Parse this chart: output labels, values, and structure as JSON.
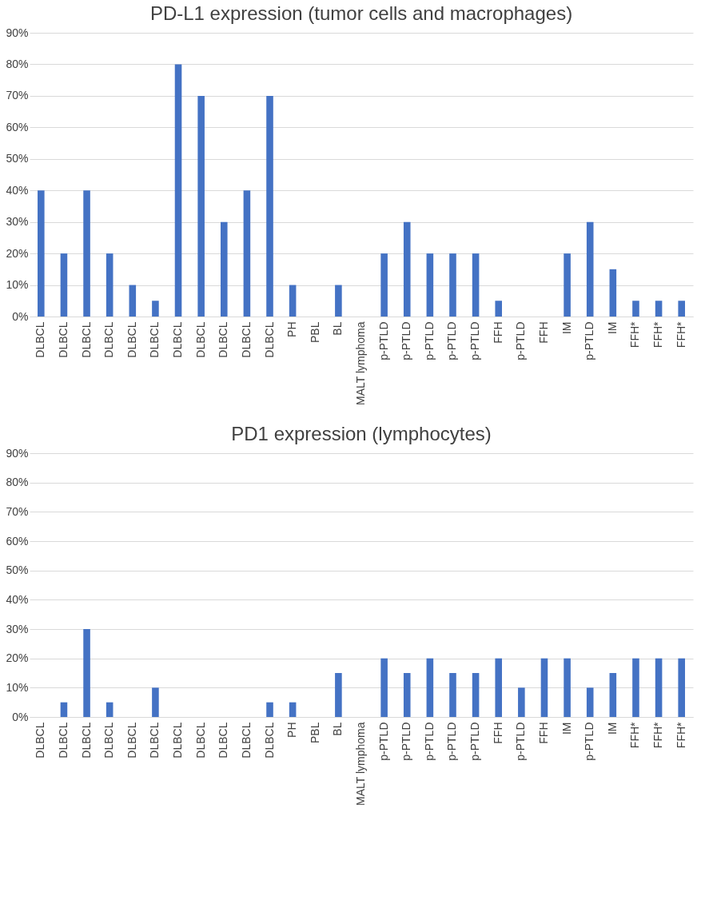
{
  "chart_data": [
    {
      "type": "bar",
      "title": "PD-L1 expression (tumor cells and macrophages)",
      "categories": [
        "DLBCL",
        "DLBCL",
        "DLBCL",
        "DLBCL",
        "DLBCL",
        "DLBCL",
        "DLBCL",
        "DLBCL",
        "DLBCL",
        "DLBCL",
        "DLBCL",
        "PH",
        "PBL",
        "BL",
        "MALT lymphoma",
        "p-PTLD",
        "p-PTLD",
        "p-PTLD",
        "p-PTLD",
        "p-PTLD",
        "FFH",
        "p-PTLD",
        "FFH",
        "IM",
        "p-PTLD",
        "IM",
        "FFH*",
        "FFH*",
        "FFH*"
      ],
      "values": [
        40,
        20,
        40,
        20,
        10,
        5,
        80,
        70,
        30,
        40,
        70,
        10,
        0,
        10,
        0,
        20,
        30,
        20,
        20,
        20,
        5,
        0,
        0,
        20,
        30,
        15,
        5,
        5,
        5
      ],
      "color": "#4472c4",
      "ylim": [
        0,
        90
      ],
      "yticks": [
        {
          "value": 0,
          "label": "0%"
        },
        {
          "value": 10,
          "label": "10%"
        },
        {
          "value": 20,
          "label": "20%"
        },
        {
          "value": 30,
          "label": "30%"
        },
        {
          "value": 40,
          "label": "40%"
        },
        {
          "value": 50,
          "label": "50%"
        },
        {
          "value": 60,
          "label": "60%"
        },
        {
          "value": 70,
          "label": "70%"
        },
        {
          "value": 80,
          "label": "80%"
        },
        {
          "value": 90,
          "label": "90%"
        }
      ],
      "grid": "y"
    },
    {
      "type": "bar",
      "title": "PD1 expression (lymphocytes)",
      "categories": [
        "DLBCL",
        "DLBCL",
        "DLBCL",
        "DLBCL",
        "DLBCL",
        "DLBCL",
        "DLBCL",
        "DLBCL",
        "DLBCL",
        "DLBCL",
        "DLBCL",
        "PH",
        "PBL",
        "BL",
        "MALT lymphoma",
        "p-PTLD",
        "p-PTLD",
        "p-PTLD",
        "p-PTLD",
        "p-PTLD",
        "FFH",
        "p-PTLD",
        "FFH",
        "IM",
        "p-PTLD",
        "IM",
        "FFH*",
        "FFH*",
        "FFH*"
      ],
      "values": [
        0,
        5,
        30,
        5,
        0,
        10,
        0,
        0,
        0,
        0,
        5,
        5,
        0,
        15,
        0,
        20,
        15,
        20,
        15,
        15,
        20,
        10,
        20,
        20,
        10,
        15,
        20,
        20,
        20
      ],
      "color": "#4472c4",
      "ylim": [
        0,
        90
      ],
      "yticks": [
        {
          "value": 0,
          "label": "0%"
        },
        {
          "value": 10,
          "label": "10%"
        },
        {
          "value": 20,
          "label": "20%"
        },
        {
          "value": 30,
          "label": "30%"
        },
        {
          "value": 40,
          "label": "40%"
        },
        {
          "value": 50,
          "label": "50%"
        },
        {
          "value": 60,
          "label": "60%"
        },
        {
          "value": 70,
          "label": "70%"
        },
        {
          "value": 80,
          "label": "80%"
        },
        {
          "value": 90,
          "label": "90%"
        }
      ],
      "grid": "y"
    }
  ]
}
